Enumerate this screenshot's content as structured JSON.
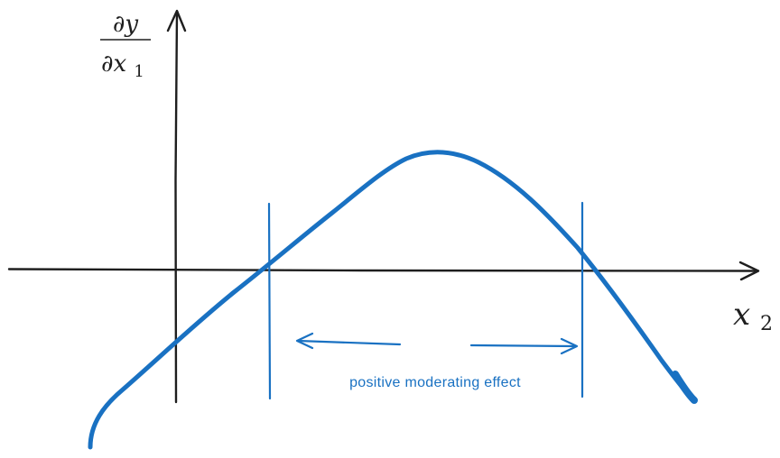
{
  "colors": {
    "axis": "#1e1e1e",
    "curve": "#1971c2",
    "annotation": "#1971c2",
    "background": "#ffffff"
  },
  "y_axis_label": {
    "numerator": "∂y",
    "denominator_base": "∂x",
    "denominator_subscript": "1"
  },
  "x_axis_label": {
    "base": "x",
    "subscript": "2"
  },
  "annotation": {
    "text": "positive moderating effect"
  }
}
